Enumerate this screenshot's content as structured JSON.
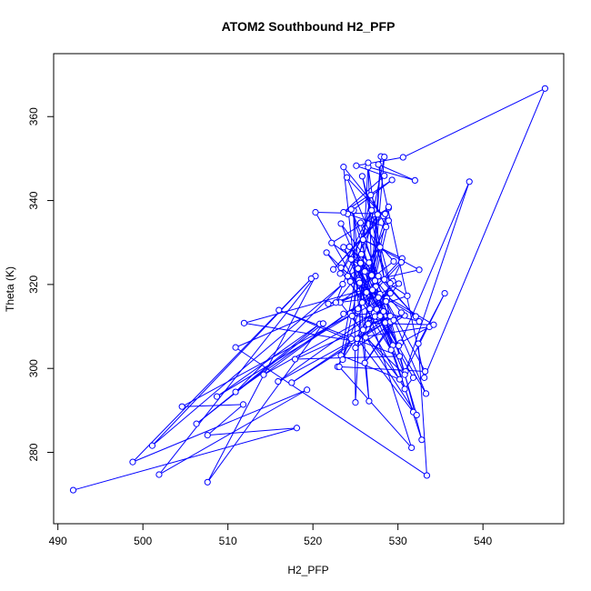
{
  "chart_data": {
    "type": "scatter",
    "title": "ATOM2 Southbound H2_PFP",
    "xlabel": "H2_PFP",
    "ylabel": "Theta (K)",
    "xlim": [
      489.5,
      549.5
    ],
    "ylim": [
      263,
      375
    ],
    "xticks": [
      490,
      500,
      510,
      520,
      530,
      540
    ],
    "yticks": [
      280,
      300,
      320,
      340,
      360
    ],
    "color": "#0000ff",
    "connected": true,
    "points": [
      [
        491.8,
        271
      ],
      [
        518.1,
        285.8
      ],
      [
        507.6,
        284.1
      ],
      [
        511.8,
        291.4
      ],
      [
        504.6,
        290.9
      ],
      [
        525.3,
        313.7
      ],
      [
        508.7,
        293.3
      ],
      [
        520.8,
        310.6
      ],
      [
        506.3,
        286.8
      ],
      [
        521.2,
        310.7
      ],
      [
        507.6,
        272.9
      ],
      [
        520.3,
        322
      ],
      [
        501.9,
        274.7
      ],
      [
        519.3,
        294.9
      ],
      [
        498.8,
        277.7
      ],
      [
        519.8,
        321.4
      ],
      [
        501.1,
        281.6
      ],
      [
        523.5,
        320.1
      ],
      [
        510.9,
        294.4
      ],
      [
        525.8,
        315.7
      ],
      [
        514.2,
        298.5
      ],
      [
        527.2,
        313.2
      ],
      [
        515.9,
        296.9
      ],
      [
        528.5,
        310.9
      ],
      [
        517.5,
        296.6
      ],
      [
        529.1,
        312.5
      ],
      [
        517.9,
        302.2
      ],
      [
        530.2,
        302.9
      ],
      [
        516,
        313.9
      ],
      [
        524.6,
        306.6
      ],
      [
        511.9,
        310.8
      ],
      [
        527.4,
        319.5
      ],
      [
        510.9,
        305
      ],
      [
        533.4,
        274.5
      ],
      [
        532.4,
        305.9
      ],
      [
        535.5,
        317.9
      ],
      [
        530.9,
        299.3
      ],
      [
        538.4,
        344.5
      ],
      [
        530.3,
        306.1
      ],
      [
        533.7,
        309.9
      ],
      [
        524.5,
        307.1
      ],
      [
        522.9,
        300.4
      ],
      [
        529.4,
        320.8
      ],
      [
        525,
        304.9
      ],
      [
        530.8,
        312.6
      ],
      [
        526.6,
        310.8
      ],
      [
        534.2,
        310.4
      ],
      [
        525.4,
        321
      ],
      [
        531.8,
        297.8
      ],
      [
        530.8,
        295.1
      ],
      [
        526.5,
        310.6
      ],
      [
        528.7,
        316.7
      ],
      [
        524.4,
        320.7
      ],
      [
        527.9,
        317.7
      ],
      [
        525.6,
        325.1
      ],
      [
        529.1,
        311.1
      ],
      [
        523.6,
        313
      ],
      [
        530.1,
        320.2
      ],
      [
        525.2,
        307.1
      ],
      [
        531.8,
        289.6
      ],
      [
        527.5,
        314.1
      ],
      [
        533.3,
        294
      ],
      [
        528.6,
        316
      ],
      [
        532.8,
        283
      ],
      [
        525.7,
        327.2
      ],
      [
        532.5,
        311.2
      ],
      [
        526.7,
        314.2
      ],
      [
        531.1,
        317.3
      ],
      [
        524.5,
        326
      ],
      [
        529.5,
        311.5
      ],
      [
        526.1,
        301.3
      ],
      [
        530.4,
        313.3
      ],
      [
        524.3,
        329
      ],
      [
        532.1,
        312.4
      ],
      [
        525.5,
        320.4
      ],
      [
        531.6,
        281.1
      ],
      [
        523.1,
        300.4
      ],
      [
        533.2,
        299.3
      ],
      [
        527.3,
        321.1
      ],
      [
        532.5,
        323.5
      ],
      [
        525.9,
        330.7
      ],
      [
        530.5,
        326.2
      ],
      [
        524.4,
        313.1
      ],
      [
        532.2,
        288.9
      ],
      [
        525.6,
        334.7
      ],
      [
        529.5,
        325.5
      ],
      [
        523.2,
        315.7
      ],
      [
        530.2,
        297.4
      ],
      [
        523.3,
        303.1
      ],
      [
        526.8,
        341.3
      ],
      [
        528.6,
        333.7
      ],
      [
        524.1,
        336.8
      ],
      [
        529.3,
        344.9
      ],
      [
        523.6,
        337.2
      ],
      [
        528.4,
        345.9
      ],
      [
        525.1,
        348.3
      ],
      [
        530.6,
        350.3
      ],
      [
        547.3,
        366.7
      ],
      [
        533.1,
        297.8
      ],
      [
        527.7,
        348.6
      ],
      [
        532,
        344.8
      ],
      [
        526.5,
        348
      ],
      [
        528.4,
        321.2
      ],
      [
        525.8,
        345.8
      ],
      [
        529.1,
        320.3
      ],
      [
        524,
        345.5
      ],
      [
        528.3,
        336.3
      ],
      [
        523.6,
        348
      ],
      [
        526.6,
        292.2
      ],
      [
        524.8,
        337.6
      ],
      [
        525,
        291.9
      ],
      [
        526.5,
        349
      ],
      [
        526.9,
        322.2
      ],
      [
        528,
        350.5
      ],
      [
        527,
        318.7
      ],
      [
        528.4,
        350.4
      ],
      [
        523.5,
        302.1
      ],
      [
        527.9,
        328.9
      ],
      [
        522.7,
        315.7
      ],
      [
        526.9,
        337.7
      ],
      [
        523.2,
        322.6
      ],
      [
        527.6,
        336.7
      ],
      [
        524.1,
        322
      ],
      [
        526.6,
        325.2
      ],
      [
        523.3,
        334.5
      ],
      [
        529.4,
        305.5
      ],
      [
        524.5,
        337.9
      ],
      [
        527.7,
        322
      ],
      [
        522.2,
        329.9
      ],
      [
        528.9,
        338.2
      ],
      [
        522.4,
        323.6
      ],
      [
        528.5,
        336.8
      ],
      [
        520.3,
        337.2
      ],
      [
        527.3,
        312.4
      ],
      [
        521.6,
        327.6
      ],
      [
        526.3,
        318.1
      ],
      [
        521.8,
        315.4
      ],
      [
        527.7,
        316.9
      ],
      [
        523.3,
        324
      ],
      [
        529.2,
        304.4
      ],
      [
        523.6,
        328.9
      ],
      [
        530.1,
        305.4
      ],
      [
        525.3,
        323.8
      ],
      [
        530.8,
        298.5
      ],
      [
        526.2,
        307.4
      ],
      [
        530.4,
        325.3
      ],
      [
        525.3,
        314.2
      ],
      [
        528.9,
        338.5
      ],
      [
        525.9,
        309.2
      ],
      [
        528.9,
        335.2
      ],
      [
        526.1,
        323.1
      ],
      [
        527.9,
        312.5
      ],
      [
        527.3,
        320.9
      ],
      [
        528.3,
        313.6
      ],
      [
        524.6,
        312.5
      ],
      [
        529.1,
        317.9
      ]
    ]
  }
}
